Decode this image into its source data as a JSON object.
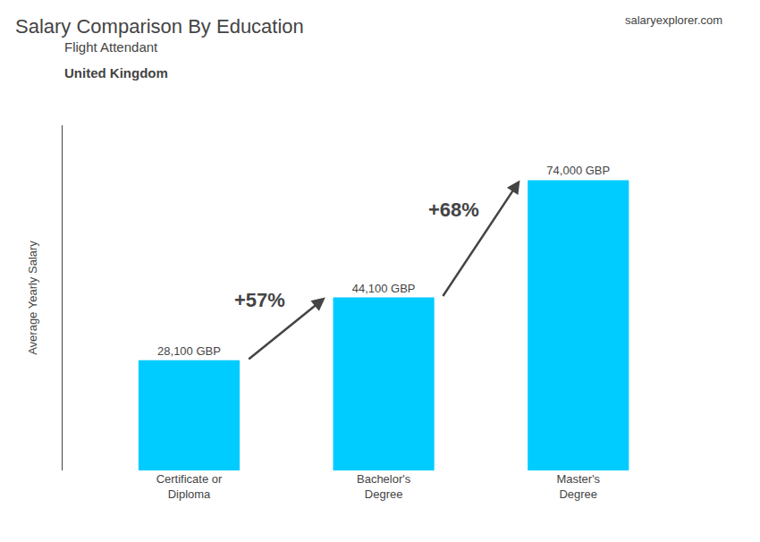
{
  "chart_data": {
    "type": "bar",
    "title": "Salary Comparison By Education",
    "subtitle": [
      "Flight Attendant",
      "United Kingdom"
    ],
    "source": "salaryexplorer.com",
    "ylabel": "Average Yearly Salary",
    "categories": [
      "Certificate or\nDiploma",
      "Bachelor's\nDegree",
      "Master's\nDegree"
    ],
    "values": [
      28100,
      44100,
      74000
    ],
    "value_labels": [
      "28,100 GBP",
      "44,100 GBP",
      "74,000 GBP"
    ],
    "data_labels": true,
    "annotations": [
      "+57%",
      "+68%"
    ],
    "color": "#00ccff",
    "ylim": [
      0,
      88000
    ],
    "yticks": [],
    "tick_labels": "x",
    "grid": false
  }
}
